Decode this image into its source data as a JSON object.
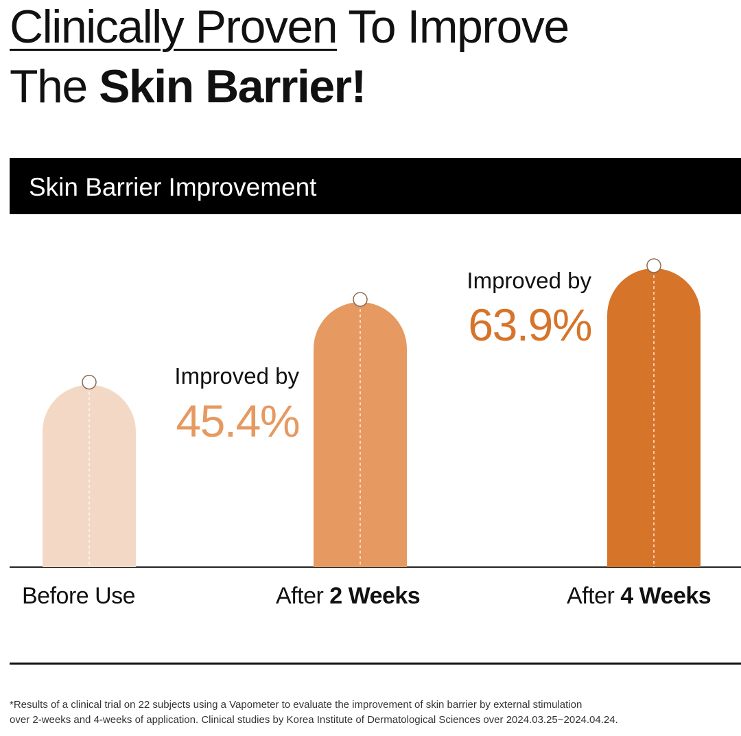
{
  "headline": {
    "line1_underlined": "Clinically Proven",
    "line1_rest": " To Improve",
    "line2_prefix": "The ",
    "line2_bold": "Skin Barrier!"
  },
  "banner": {
    "title": "Skin Barrier Improvement"
  },
  "chart_data": {
    "type": "bar",
    "title": "Skin Barrier Improvement",
    "categories": [
      "Before Use",
      "After 2 Weeks",
      "After 4 Weeks"
    ],
    "category_labels": [
      {
        "prefix": "Before Use",
        "bold": ""
      },
      {
        "prefix": "After ",
        "bold": "2 Weeks"
      },
      {
        "prefix": "After ",
        "bold": "4 Weeks"
      }
    ],
    "values": [
      100,
      145.4,
      163.9
    ],
    "annotations": [
      null,
      {
        "label": "Improved by",
        "value": "45.4%"
      },
      {
        "label": "Improved by",
        "value": "63.9%"
      }
    ],
    "colors": [
      "#f3d9c5",
      "#e69960",
      "#d6742a"
    ],
    "annotation_colors": [
      "#e69960",
      "#e69960",
      "#d6742a"
    ],
    "marker_color": "#ffffff",
    "baseline_color": "#222222",
    "grid": false,
    "ylim": [
      0,
      163.9
    ]
  },
  "footnote": {
    "line1": "*Results of a clinical trial on 22 subjects using a Vapometer to evaluate the improvement of skin barrier by external stimulation",
    "line2": "over 2-weeks and 4-weeks of application. Clinical studies by Korea Institute of Dermatological Sciences over 2024.03.25~2024.04.24."
  }
}
